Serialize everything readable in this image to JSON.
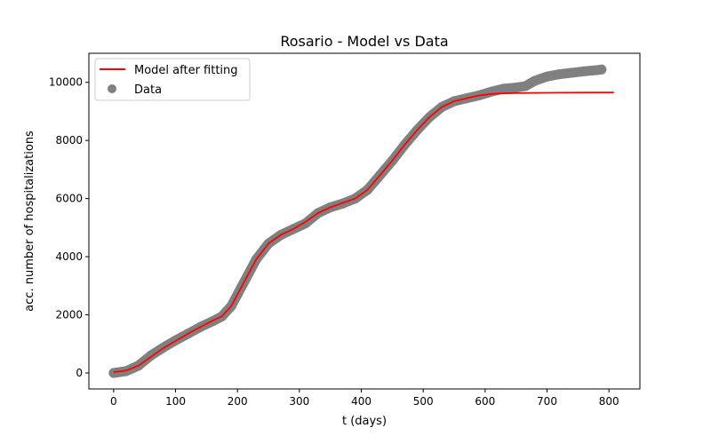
{
  "chart_data": {
    "type": "line",
    "title": "Rosario - Model vs Data",
    "xlabel": "t (days)",
    "ylabel": "acc. number of hospitalizations",
    "xlim": [
      -40,
      850
    ],
    "ylim": [
      -550,
      11000
    ],
    "xticks": [
      0,
      100,
      200,
      300,
      400,
      500,
      600,
      700,
      800
    ],
    "yticks": [
      0,
      2000,
      4000,
      6000,
      8000,
      10000
    ],
    "xtick_labels": [
      "0",
      "100",
      "200",
      "300",
      "400",
      "500",
      "600",
      "700",
      "800"
    ],
    "ytick_labels": [
      "0",
      "2000",
      "4000",
      "6000",
      "8000",
      "10000"
    ],
    "grid": false,
    "legend_position": "top-left",
    "series": [
      {
        "name": "Model after fitting",
        "kind": "line",
        "color": "#ff0000",
        "x": [
          0,
          20,
          40,
          60,
          80,
          100,
          120,
          140,
          160,
          175,
          190,
          210,
          230,
          250,
          270,
          290,
          310,
          330,
          350,
          370,
          390,
          410,
          430,
          450,
          470,
          490,
          510,
          530,
          550,
          570,
          590,
          610,
          630,
          650,
          700,
          750,
          808
        ],
        "y": [
          30,
          80,
          250,
          550,
          850,
          1100,
          1350,
          1580,
          1800,
          1950,
          2300,
          3100,
          3900,
          4450,
          4750,
          4950,
          5200,
          5500,
          5700,
          5850,
          6000,
          6300,
          6800,
          7300,
          7850,
          8350,
          8800,
          9150,
          9350,
          9450,
          9550,
          9600,
          9620,
          9630,
          9640,
          9645,
          9650
        ]
      },
      {
        "name": "Data",
        "kind": "scatter",
        "color": "#808080",
        "x": [
          0,
          20,
          40,
          60,
          80,
          100,
          120,
          140,
          160,
          175,
          190,
          210,
          230,
          250,
          270,
          290,
          310,
          330,
          350,
          370,
          390,
          410,
          430,
          450,
          470,
          490,
          510,
          530,
          550,
          570,
          590,
          610,
          630,
          650,
          665,
          680,
          700,
          720,
          740,
          760,
          780,
          788
        ],
        "y": [
          0,
          60,
          250,
          600,
          870,
          1120,
          1350,
          1580,
          1780,
          1950,
          2300,
          3100,
          3900,
          4450,
          4750,
          4950,
          5150,
          5500,
          5700,
          5830,
          6000,
          6300,
          6800,
          7300,
          7850,
          8350,
          8800,
          9150,
          9350,
          9450,
          9550,
          9680,
          9780,
          9820,
          9870,
          10050,
          10200,
          10280,
          10330,
          10380,
          10420,
          10440
        ]
      }
    ]
  }
}
